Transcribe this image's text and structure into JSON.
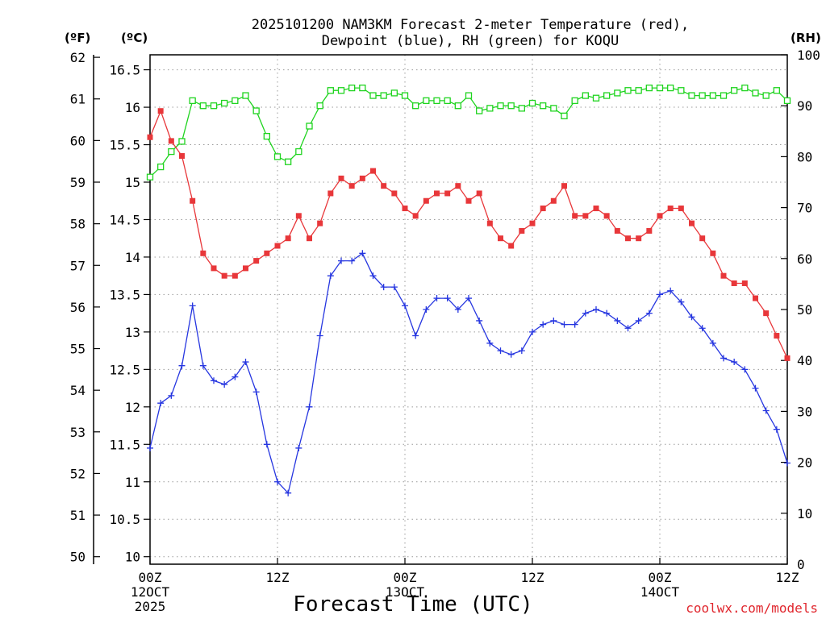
{
  "chart_data": {
    "type": "line",
    "title_line1": "2025101200 NAM3KM Forecast 2-meter Temperature (red),",
    "title_line2": "Dewpoint (blue), RH (green) for KOQU",
    "xlabel": "Forecast Time (UTC)",
    "credit": "coolwx.com/models",
    "unit_f": "(ºF)",
    "unit_c": "(ºC)",
    "unit_rh": "(RH)",
    "x_hours_range": [
      0,
      60
    ],
    "celsius_range": [
      9.9,
      16.7
    ],
    "rh_range": [
      0,
      100
    ],
    "grid": true,
    "x_ticks": [
      {
        "h": 0,
        "line1": "00Z",
        "line2": "12OCT",
        "line3": "2025"
      },
      {
        "h": 12,
        "line1": "12Z",
        "line2": "",
        "line3": ""
      },
      {
        "h": 24,
        "line1": "00Z",
        "line2": "13OCT",
        "line3": ""
      },
      {
        "h": 36,
        "line1": "12Z",
        "line2": "",
        "line3": ""
      },
      {
        "h": 48,
        "line1": "00Z",
        "line2": "14OCT",
        "line3": ""
      },
      {
        "h": 60,
        "line1": "12Z",
        "line2": "",
        "line3": ""
      }
    ],
    "celsius_ticks": [
      10,
      10.5,
      11,
      11.5,
      12,
      12.5,
      13,
      13.5,
      14,
      14.5,
      15,
      15.5,
      16,
      16.5
    ],
    "fahrenheit_ticks": [
      50,
      51,
      52,
      53,
      54,
      55,
      56,
      57,
      58,
      59,
      60,
      61,
      62
    ],
    "rh_ticks": [
      0,
      10,
      20,
      30,
      40,
      50,
      60,
      70,
      80,
      90,
      100
    ],
    "series": [
      {
        "name": "2-meter Temperature",
        "axis": "celsius",
        "color": "#e8373a",
        "marker": "filled-square",
        "values": [
          15.6,
          15.95,
          15.55,
          15.35,
          14.75,
          14.05,
          13.85,
          13.75,
          13.75,
          13.85,
          13.95,
          14.05,
          14.15,
          14.25,
          14.55,
          14.25,
          14.45,
          14.85,
          15.05,
          14.95,
          15.05,
          15.15,
          14.95,
          14.85,
          14.65,
          14.55,
          14.75,
          14.85,
          14.85,
          14.95,
          14.75,
          14.85,
          14.45,
          14.25,
          14.15,
          14.35,
          14.45,
          14.65,
          14.75,
          14.95,
          14.55,
          14.55,
          14.65,
          14.55,
          14.35,
          14.25,
          14.25,
          14.35,
          14.55,
          14.65,
          14.65,
          14.45,
          14.25,
          14.05,
          13.75,
          13.65,
          13.65,
          13.45,
          13.25,
          12.95,
          12.65
        ]
      },
      {
        "name": "Dewpoint",
        "axis": "celsius",
        "color": "#2636e0",
        "marker": "plus",
        "values": [
          11.45,
          12.05,
          12.15,
          12.55,
          13.35,
          12.55,
          12.35,
          12.3,
          12.4,
          12.6,
          12.2,
          11.5,
          11.0,
          10.85,
          11.45,
          12.0,
          12.95,
          13.75,
          13.95,
          13.95,
          14.05,
          13.75,
          13.6,
          13.6,
          13.35,
          12.95,
          13.3,
          13.45,
          13.45,
          13.3,
          13.45,
          13.15,
          12.85,
          12.75,
          12.7,
          12.75,
          13.0,
          13.1,
          13.15,
          13.1,
          13.1,
          13.25,
          13.3,
          13.25,
          13.15,
          13.05,
          13.15,
          13.25,
          13.5,
          13.55,
          13.4,
          13.2,
          13.05,
          12.85,
          12.65,
          12.6,
          12.5,
          12.25,
          11.95,
          11.7,
          11.25
        ]
      },
      {
        "name": "RH",
        "axis": "rh",
        "color": "#1fd41f",
        "marker": "open-square",
        "values": [
          76,
          78,
          81,
          83,
          91,
          90,
          90,
          90.5,
          91,
          92,
          89,
          84,
          80,
          79,
          81,
          86,
          90,
          93,
          93,
          93.5,
          93.5,
          92,
          92,
          92.5,
          92,
          90,
          91,
          91,
          91,
          90,
          92,
          89,
          89.5,
          90,
          90,
          89.5,
          90.5,
          90,
          89.5,
          88,
          91,
          92,
          91.5,
          92,
          92.5,
          93,
          93,
          93.5,
          93.5,
          93.5,
          93,
          92,
          92,
          92,
          92,
          93,
          93.5,
          92.5,
          92,
          93,
          91
        ]
      }
    ]
  }
}
